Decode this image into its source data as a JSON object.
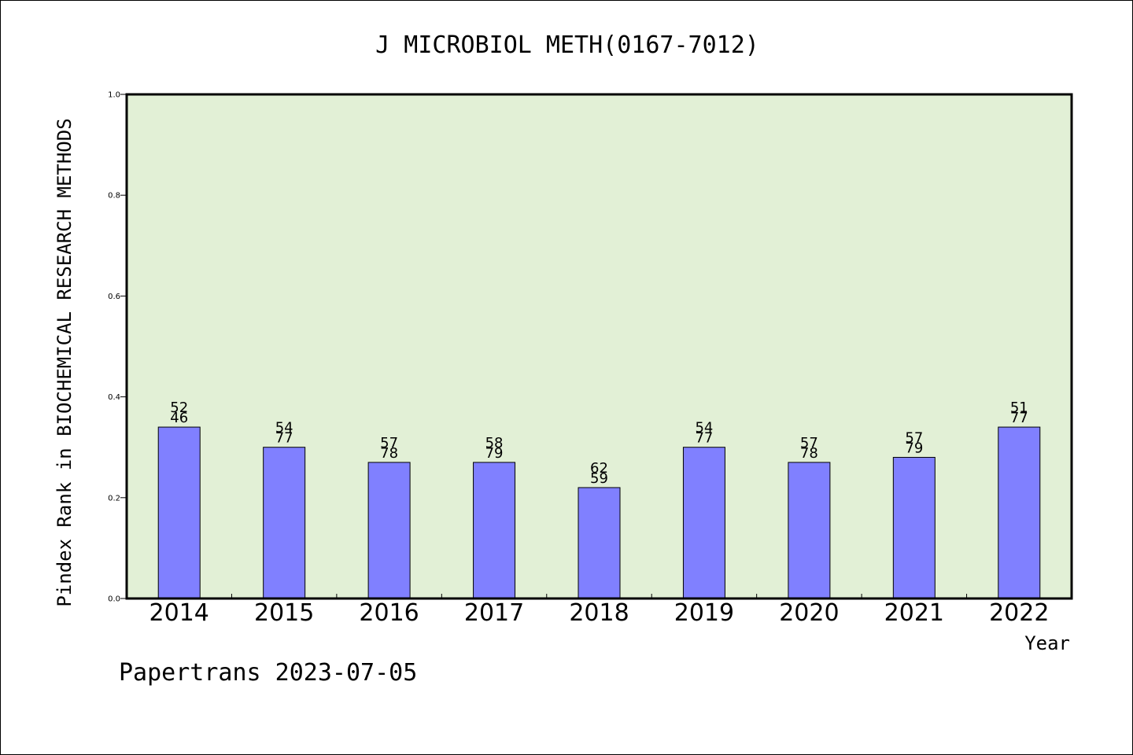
{
  "chart_data": {
    "type": "bar",
    "title": "J MICROBIOL METH(0167-7012)",
    "xlabel": "Year",
    "ylabel": "Pindex Rank in BIOCHEMICAL RESEARCH METHODS",
    "ylim": [
      0,
      1.0
    ],
    "yticks": [
      "0.0",
      "0.2",
      "0.4",
      "0.6",
      "0.8",
      "1.0"
    ],
    "categories": [
      "2014",
      "2015",
      "2016",
      "2017",
      "2018",
      "2019",
      "2020",
      "2021",
      "2022"
    ],
    "values": [
      0.34,
      0.3,
      0.27,
      0.27,
      0.22,
      0.3,
      0.27,
      0.28,
      0.34
    ],
    "labels_top": [
      "52",
      "54",
      "57",
      "58",
      "62",
      "54",
      "57",
      "57",
      "51"
    ],
    "labels_bottom": [
      "46",
      "77",
      "78",
      "79",
      "59",
      "77",
      "78",
      "79",
      "77"
    ],
    "grid": false,
    "colors": {
      "bar": "#8080ff",
      "plot_bg": "#e2f0d6",
      "axis": "#000000"
    }
  },
  "footer": "Papertrans 2023-07-05"
}
